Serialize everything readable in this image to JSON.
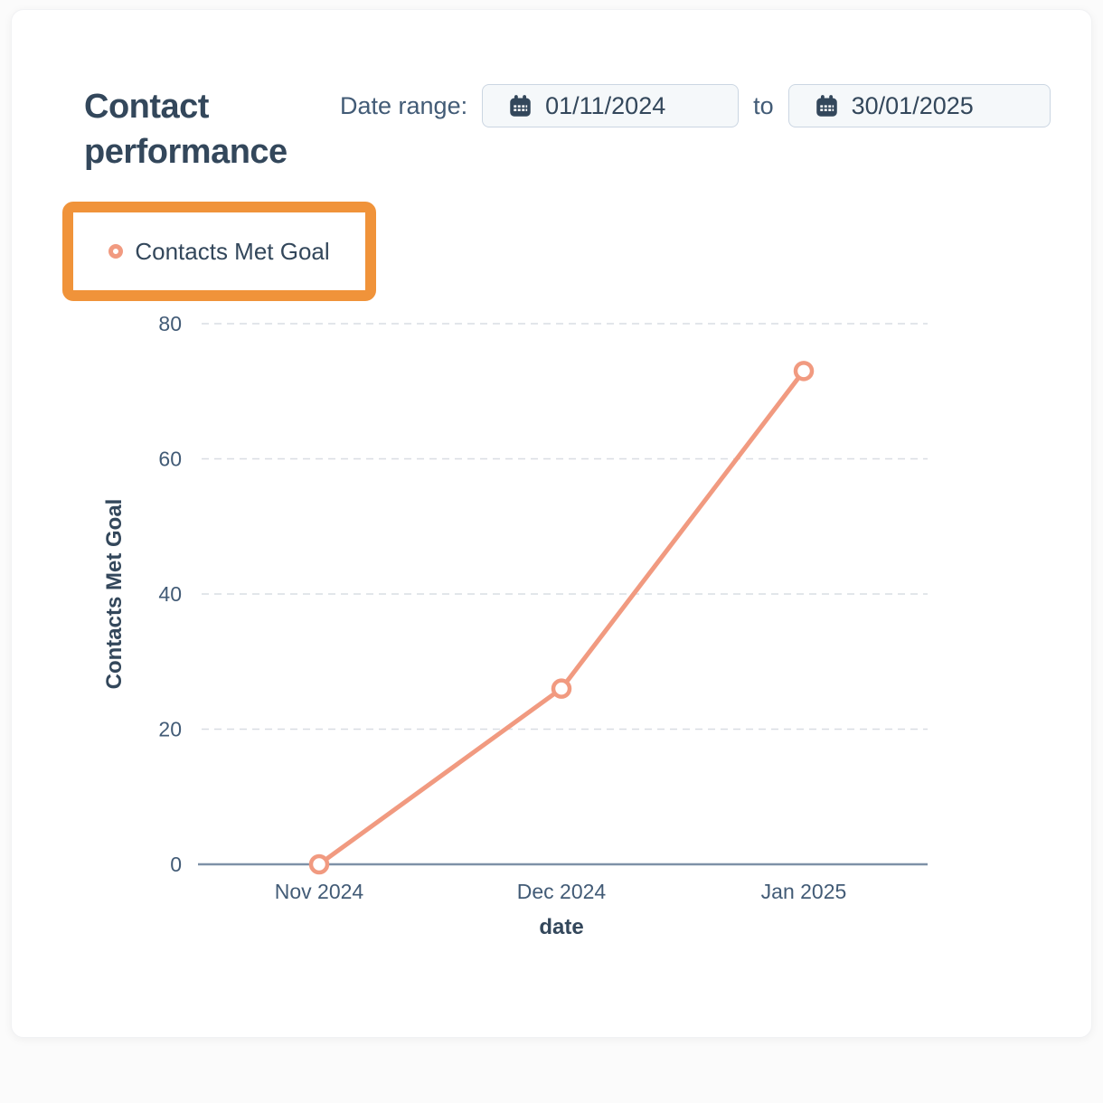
{
  "card": {
    "title": "Contact performance"
  },
  "date_range": {
    "label": "Date range:",
    "from_value": "01/11/2024",
    "separator": "to",
    "to_value": "30/01/2025",
    "from_icon": "calendar-icon",
    "to_icon": "calendar-icon"
  },
  "legend": {
    "highlight_color": "#f0933a",
    "items": [
      {
        "label": "Contacts Met Goal",
        "marker": "open-circle",
        "color": "#f19a80"
      }
    ]
  },
  "chart_data": {
    "type": "line",
    "title": "Contact performance",
    "x": [
      "Nov 2024",
      "Dec 2024",
      "Jan 2025"
    ],
    "series": [
      {
        "name": "Contacts Met Goal",
        "values": [
          0,
          26,
          73
        ],
        "color": "#f19a80",
        "marker": "open-circle"
      }
    ],
    "xlabel": "date",
    "ylabel": "Contacts Met Goal",
    "ylim": [
      0,
      80
    ],
    "yticks": [
      0,
      20,
      40,
      60,
      80
    ],
    "grid": "horizontal-dashed",
    "legend_position": "top-left"
  },
  "colors": {
    "heading_text": "#33475b",
    "tick_text": "#425b76",
    "axis_line": "#7e91a7",
    "gridline": "#d9dde3",
    "series_line": "#f19a80",
    "legend_highlight": "#f0933a",
    "input_bg": "#f5f8fa",
    "input_border": "#cbd6e2",
    "card_bg": "#ffffff",
    "page_bg": "#fbfbfb"
  }
}
